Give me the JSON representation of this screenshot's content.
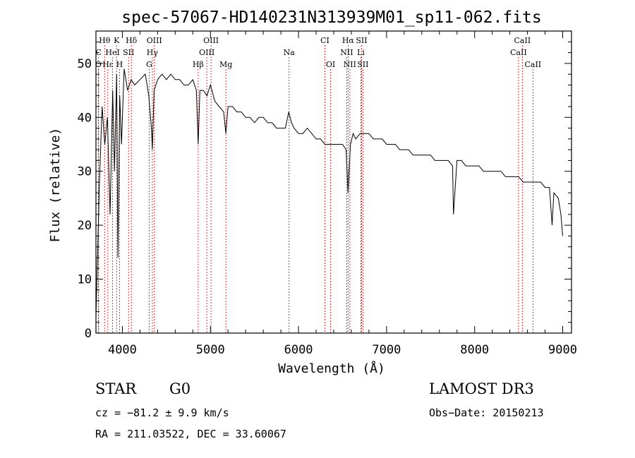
{
  "chart_data": {
    "type": "line",
    "title": "spec-57067-HD140231N313939M01_sp11-062.fits",
    "xlabel": "Wavelength (Å)",
    "ylabel": "Flux (relative)",
    "xlim": [
      3700,
      9100
    ],
    "ylim": [
      0,
      56
    ],
    "xticks": [
      4000,
      5000,
      6000,
      7000,
      8000,
      9000
    ],
    "yticks": [
      0,
      10,
      20,
      30,
      40,
      50
    ],
    "series": [
      {
        "name": "flux",
        "x": [
          3700,
          3740,
          3770,
          3800,
          3830,
          3860,
          3890,
          3910,
          3935,
          3950,
          3970,
          3990,
          4020,
          4060,
          4100,
          4140,
          4200,
          4260,
          4300,
          4330,
          4340,
          4360,
          4400,
          4450,
          4500,
          4550,
          4600,
          4650,
          4700,
          4750,
          4800,
          4840,
          4861,
          4880,
          4920,
          4960,
          5000,
          5050,
          5100,
          5150,
          5175,
          5200,
          5250,
          5300,
          5350,
          5400,
          5450,
          5500,
          5550,
          5600,
          5650,
          5700,
          5750,
          5800,
          5850,
          5890,
          5920,
          5950,
          6000,
          6050,
          6100,
          6150,
          6200,
          6250,
          6300,
          6350,
          6400,
          6450,
          6500,
          6540,
          6563,
          6590,
          6620,
          6650,
          6700,
          6750,
          6800,
          6850,
          6900,
          6950,
          7000,
          7050,
          7100,
          7150,
          7200,
          7250,
          7300,
          7350,
          7400,
          7450,
          7500,
          7550,
          7600,
          7650,
          7700,
          7750,
          7760,
          7800,
          7850,
          7900,
          7950,
          8000,
          8050,
          8100,
          8150,
          8200,
          8250,
          8300,
          8350,
          8400,
          8450,
          8500,
          8550,
          8600,
          8650,
          8700,
          8750,
          8800,
          8850,
          8880,
          8900,
          8950,
          8980,
          9000
        ],
        "y": [
          3,
          28,
          42,
          35,
          40,
          22,
          45,
          30,
          48,
          14,
          44,
          35,
          49,
          45,
          47,
          46,
          47,
          48,
          44,
          38,
          34,
          45,
          47,
          48,
          47,
          48,
          47,
          47,
          46,
          46,
          47,
          45,
          35,
          45,
          45,
          44,
          46,
          43,
          42,
          41,
          37,
          42,
          42,
          41,
          41,
          40,
          40,
          39,
          40,
          40,
          39,
          39,
          38,
          38,
          38,
          41,
          39,
          38,
          37,
          37,
          38,
          37,
          36,
          36,
          35,
          35,
          35,
          35,
          35,
          34,
          26,
          35,
          37,
          36,
          37,
          37,
          37,
          36,
          36,
          36,
          35,
          35,
          35,
          34,
          34,
          34,
          33,
          33,
          33,
          33,
          33,
          32,
          32,
          32,
          32,
          31,
          22,
          32,
          32,
          31,
          31,
          31,
          31,
          30,
          30,
          30,
          30,
          30,
          29,
          29,
          29,
          29,
          28,
          28,
          28,
          28,
          28,
          27,
          27,
          20,
          26,
          25,
          22,
          18
        ]
      }
    ],
    "lines_top": [
      {
        "label": "Hθ",
        "x": 3798,
        "row": 1
      },
      {
        "label": "K",
        "x": 3934,
        "row": 1
      },
      {
        "label": "Hδ",
        "x": 4102,
        "row": 1
      },
      {
        "label": "OIII",
        "x": 4363,
        "row": 1
      },
      {
        "label": "OIII",
        "x": 5007,
        "row": 1
      },
      {
        "label": "CI",
        "x": 6300,
        "row": 1
      },
      {
        "label": "Hα",
        "x": 6563,
        "row": 1
      },
      {
        "label": "SII",
        "x": 6716,
        "row": 1
      },
      {
        "label": "CaII",
        "x": 8542,
        "row": 1
      },
      {
        "label": "C",
        "x": 3730,
        "row": 2
      },
      {
        "label": "HeI",
        "x": 3889,
        "row": 2
      },
      {
        "label": "SII",
        "x": 4070,
        "row": 2
      },
      {
        "label": "Hγ",
        "x": 4340,
        "row": 2
      },
      {
        "label": "OIII",
        "x": 4959,
        "row": 2
      },
      {
        "label": "Na",
        "x": 5893,
        "row": 2
      },
      {
        "label": "NII",
        "x": 6548,
        "row": 2
      },
      {
        "label": "Li",
        "x": 6708,
        "row": 2
      },
      {
        "label": "CaII",
        "x": 8498,
        "row": 2
      },
      {
        "label": "O",
        "x": 3727,
        "row": 3
      },
      {
        "label": "Hε",
        "x": 3835,
        "row": 3
      },
      {
        "label": "H",
        "x": 3968,
        "row": 3
      },
      {
        "label": "G",
        "x": 4305,
        "row": 3
      },
      {
        "label": "Hβ",
        "x": 4861,
        "row": 3
      },
      {
        "label": "Mg",
        "x": 5175,
        "row": 3
      },
      {
        "label": "OI",
        "x": 6364,
        "row": 3
      },
      {
        "label": "NII",
        "x": 6583,
        "row": 3
      },
      {
        "label": "SII",
        "x": 6731,
        "row": 3
      },
      {
        "label": "CaII",
        "x": 8662,
        "row": 3
      }
    ]
  },
  "footer": {
    "object_class": "STAR",
    "subclass": "G0",
    "survey": "LAMOST DR3",
    "cz": "cz = −81.2 ± 9.9 km/s",
    "obs_date": "Obs−Date: 20150213",
    "coords": "RA = 211.03522, DEC =  33.60067"
  }
}
